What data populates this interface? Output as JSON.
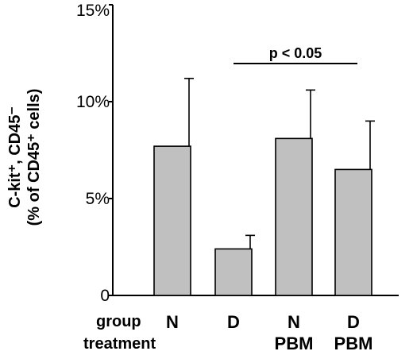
{
  "chart_data": {
    "type": "bar",
    "categories": [
      "N",
      "D",
      "N",
      "D"
    ],
    "treatment_labels": [
      "",
      "",
      "PBM",
      "PBM"
    ],
    "values": [
      7.7,
      2.4,
      8.1,
      6.5
    ],
    "error_upper": [
      11.2,
      3.1,
      10.6,
      9.0
    ],
    "ylim": [
      0,
      15
    ],
    "yticks": [
      {
        "value": 0,
        "label": "0"
      },
      {
        "value": 5,
        "label": "5%"
      },
      {
        "value": 10,
        "label": "10%"
      },
      {
        "value": 15,
        "label": "15%"
      }
    ],
    "ylabel_line1": "C-kit⁺, CD45⁻",
    "ylabel_line2": "(% of CD45⁺ cells)",
    "row_labels": {
      "group": "group",
      "treatment": "treatment"
    },
    "annotation": {
      "text": "p < 0.05",
      "from_index": 1,
      "to_index": 3
    },
    "bar_color": "#c0c0c0"
  }
}
